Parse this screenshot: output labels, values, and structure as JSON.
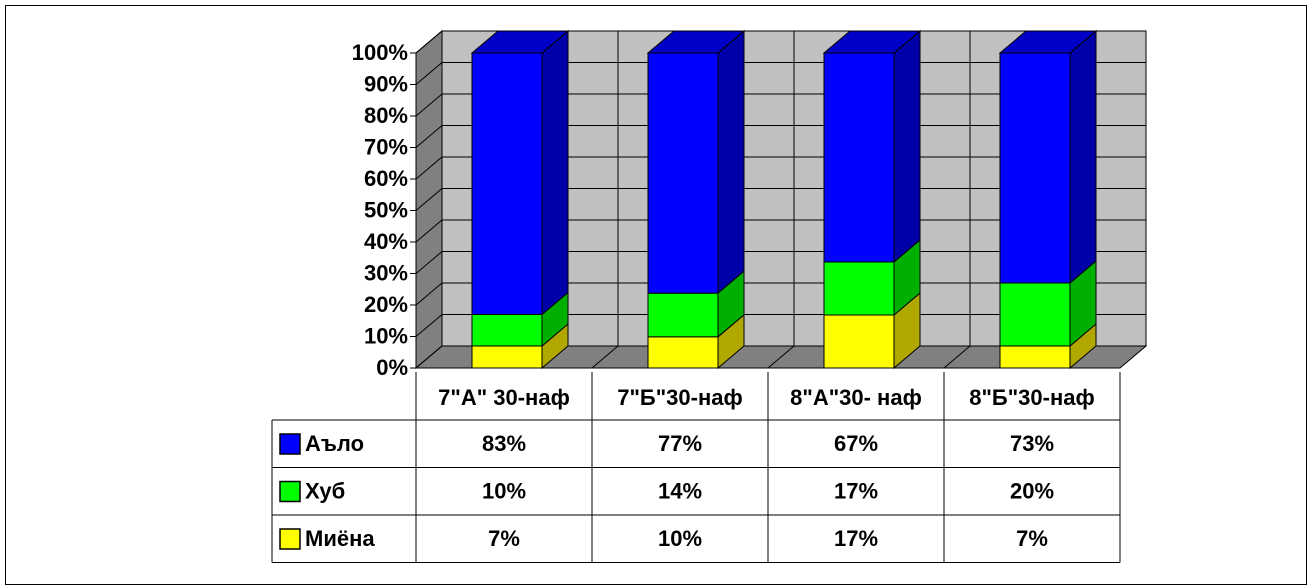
{
  "chart_data": {
    "type": "bar",
    "stacked": true,
    "percent_stacked": true,
    "three_d": true,
    "categories": [
      "7\"А\" 30-наф",
      "7\"Б\"30-наф",
      "8\"А\"30- наф",
      "8\"Б\"30-наф"
    ],
    "series": [
      {
        "name": "Аъло",
        "values": [
          83,
          77,
          67,
          73
        ],
        "labels": [
          "83%",
          "77%",
          "67%",
          "73%"
        ],
        "color": "#0000ff",
        "side": "#0000a8",
        "top": "#0000c8"
      },
      {
        "name": "Хуб",
        "values": [
          10,
          14,
          17,
          20
        ],
        "labels": [
          "10%",
          "14%",
          "17%",
          "20%"
        ],
        "color": "#00ff00",
        "side": "#00b000",
        "top": "#00d800"
      },
      {
        "name": "Миёна",
        "values": [
          7,
          10,
          17,
          7
        ],
        "labels": [
          "7%",
          "10%",
          "17%",
          "7%"
        ],
        "color": "#ffff00",
        "side": "#b0a800",
        "top": "#d8d000"
      }
    ],
    "ylim": [
      0,
      100
    ],
    "yticks": [
      "0%",
      "10%",
      "20%",
      "30%",
      "40%",
      "50%",
      "60%",
      "70%",
      "80%",
      "90%",
      "100%"
    ],
    "grid": true,
    "wall_color": "#c0c0c0",
    "data_table": true,
    "legend": "in data table"
  }
}
